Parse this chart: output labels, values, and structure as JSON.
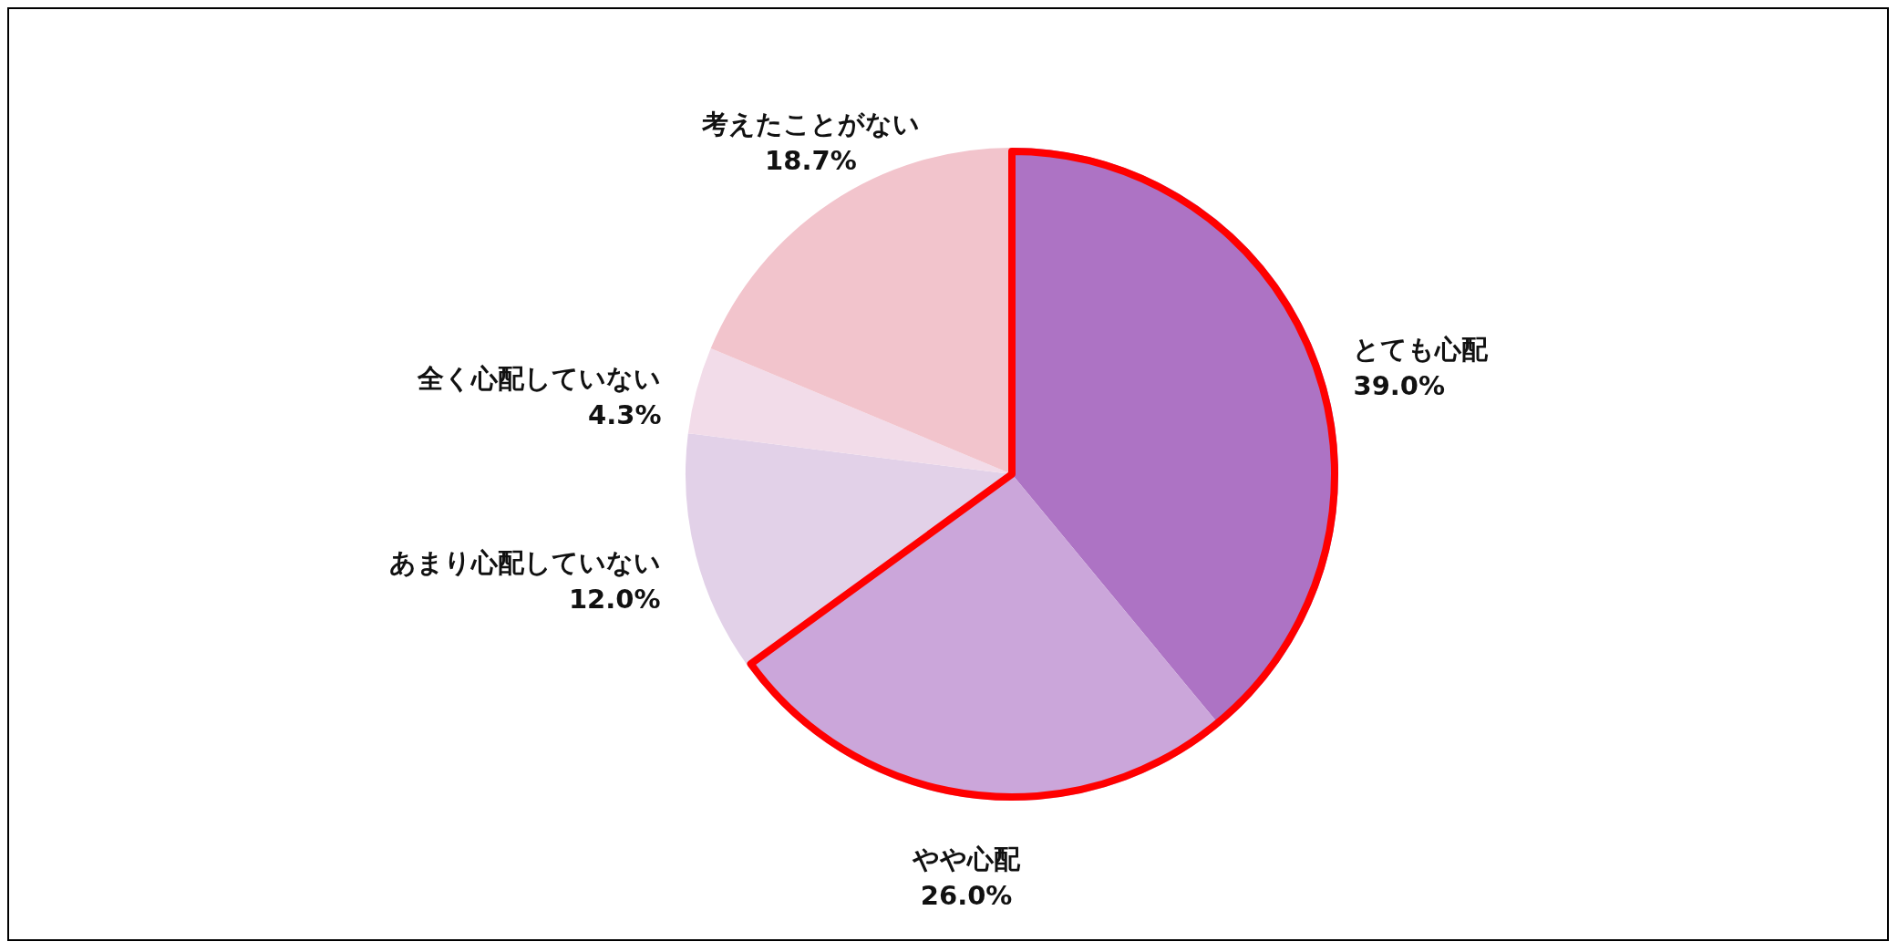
{
  "chart_data": {
    "type": "pie",
    "categories": [
      "とても心配",
      "やや心配",
      "あまり心配していない",
      "全く心配していない",
      "考えたことがない"
    ],
    "values": [
      39.0,
      26.0,
      12.0,
      4.3,
      18.7
    ],
    "colors": [
      "#ad73c4",
      "#cba6da",
      "#e2d1e8",
      "#f2dce9",
      "#f2c4cc"
    ],
    "value_labels": [
      "39.0%",
      "26.0%",
      "12.0%",
      "4.3%",
      "18.7%"
    ],
    "legend": false
  }
}
